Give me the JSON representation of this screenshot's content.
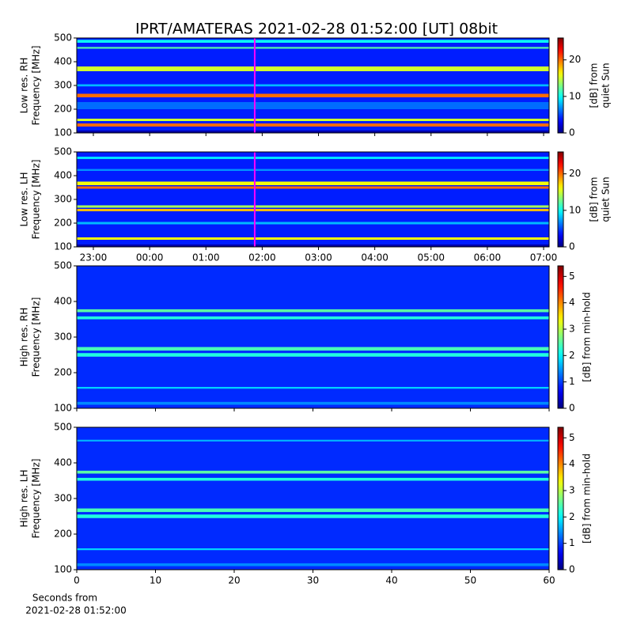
{
  "title": "IPRT/AMATERAS 2021-02-28 01:52:00 [UT]   08bit",
  "x_label": [
    "Seconds from",
    "2021-02-28 01:52:00"
  ],
  "chart_data": [
    {
      "type": "spectrogram",
      "ylabel": [
        "Low res. RH",
        "Frequency [MHz]"
      ],
      "clabel": [
        "[dB] from",
        "quiet Sun"
      ],
      "xlim": [
        22.705,
        31.098
      ],
      "xticks": [
        23,
        24,
        25,
        26,
        27,
        28,
        29,
        30,
        31
      ],
      "xtick_labels": false,
      "ylim": [
        100,
        500
      ],
      "yticks": [
        100,
        200,
        300,
        400,
        500
      ],
      "clim": [
        0,
        26
      ],
      "cticks": [
        0,
        10,
        20
      ],
      "colormap": "jet",
      "background": 4,
      "cursor": 25.867,
      "cursor_color": "#ff00ff",
      "bands": [
        {
          "from": 480,
          "to": 492,
          "value": 10
        },
        {
          "from": 455,
          "to": 462,
          "value": 12
        },
        {
          "from": 360,
          "to": 380,
          "value": 15
        },
        {
          "from": 296,
          "to": 305,
          "value": 8
        },
        {
          "from": 250,
          "to": 265,
          "value": 20
        },
        {
          "from": 200,
          "to": 230,
          "value": 6
        },
        {
          "from": 150,
          "to": 160,
          "value": 15
        },
        {
          "from": 127,
          "to": 140,
          "value": 20
        },
        {
          "from": 100,
          "to": 110,
          "value": 1
        }
      ]
    },
    {
      "type": "spectrogram",
      "ylabel": [
        "Low res. LH",
        "Frequency [MHz]"
      ],
      "clabel": [
        "[dB] from",
        "quiet Sun"
      ],
      "xlim": [
        22.705,
        31.098
      ],
      "xticks": [
        {
          "value": 23,
          "label": "23:00"
        },
        {
          "value": 24,
          "label": "00:00"
        },
        {
          "value": 25,
          "label": "01:00"
        },
        {
          "value": 26,
          "label": "02:00"
        },
        {
          "value": 27,
          "label": "03:00"
        },
        {
          "value": 28,
          "label": "04:00"
        },
        {
          "value": 29,
          "label": "05:00"
        },
        {
          "value": 30,
          "label": "06:00"
        },
        {
          "value": 31,
          "label": "07:00"
        }
      ],
      "xtick_labels": true,
      "ylim": [
        100,
        500
      ],
      "yticks": [
        100,
        200,
        300,
        400,
        500
      ],
      "clim": [
        0,
        26
      ],
      "cticks": [
        0,
        10,
        20
      ],
      "colormap": "jet",
      "background": 4,
      "cursor": 25.867,
      "cursor_color": "#ff00ff",
      "bands": [
        {
          "from": 470,
          "to": 480,
          "value": 9
        },
        {
          "from": 420,
          "to": 428,
          "value": 7
        },
        {
          "from": 360,
          "to": 375,
          "value": 16
        },
        {
          "from": 345,
          "to": 355,
          "value": 20
        },
        {
          "from": 265,
          "to": 275,
          "value": 14
        },
        {
          "from": 250,
          "to": 260,
          "value": 18
        },
        {
          "from": 195,
          "to": 205,
          "value": 8
        },
        {
          "from": 130,
          "to": 140,
          "value": 16
        },
        {
          "from": 100,
          "to": 110,
          "value": 1
        }
      ]
    },
    {
      "type": "spectrogram",
      "ylabel": [
        "High res. RH",
        "Frequency [MHz]"
      ],
      "clabel": [
        "[dB] from min-hold"
      ],
      "xlim": [
        0,
        60
      ],
      "xticks": [
        0,
        10,
        20,
        30,
        40,
        50,
        60
      ],
      "xtick_labels": false,
      "ylim": [
        100,
        500
      ],
      "yticks": [
        100,
        200,
        300,
        400,
        500
      ],
      "clim": [
        0,
        5.4
      ],
      "cticks": [
        0,
        1,
        2,
        3,
        4,
        5
      ],
      "colormap": "jet",
      "background": 0.9,
      "bands": [
        {
          "from": 370,
          "to": 378,
          "value": 2.5
        },
        {
          "from": 350,
          "to": 358,
          "value": 2.2
        },
        {
          "from": 262,
          "to": 272,
          "value": 2.4
        },
        {
          "from": 245,
          "to": 255,
          "value": 2.2
        },
        {
          "from": 155,
          "to": 160,
          "value": 1.8
        },
        {
          "from": 110,
          "to": 118,
          "value": 1.4
        }
      ]
    },
    {
      "type": "spectrogram",
      "ylabel": [
        "High res. LH",
        "Frequency [MHz]"
      ],
      "clabel": [
        "[dB] from min-hold"
      ],
      "xlim": [
        0,
        60
      ],
      "xticks": [
        0,
        10,
        20,
        30,
        40,
        50,
        60
      ],
      "xtick_labels": true,
      "ylim": [
        100,
        500
      ],
      "yticks": [
        100,
        200,
        300,
        400,
        500
      ],
      "clim": [
        0,
        5.4
      ],
      "cticks": [
        0,
        1,
        2,
        3,
        4,
        5
      ],
      "colormap": "jet",
      "background": 0.9,
      "bands": [
        {
          "from": 460,
          "to": 465,
          "value": 1.6
        },
        {
          "from": 370,
          "to": 378,
          "value": 2.5
        },
        {
          "from": 350,
          "to": 358,
          "value": 2.2
        },
        {
          "from": 262,
          "to": 272,
          "value": 2.4
        },
        {
          "from": 245,
          "to": 255,
          "value": 2.2
        },
        {
          "from": 155,
          "to": 160,
          "value": 1.8
        },
        {
          "from": 110,
          "to": 118,
          "value": 1.4
        }
      ]
    }
  ]
}
